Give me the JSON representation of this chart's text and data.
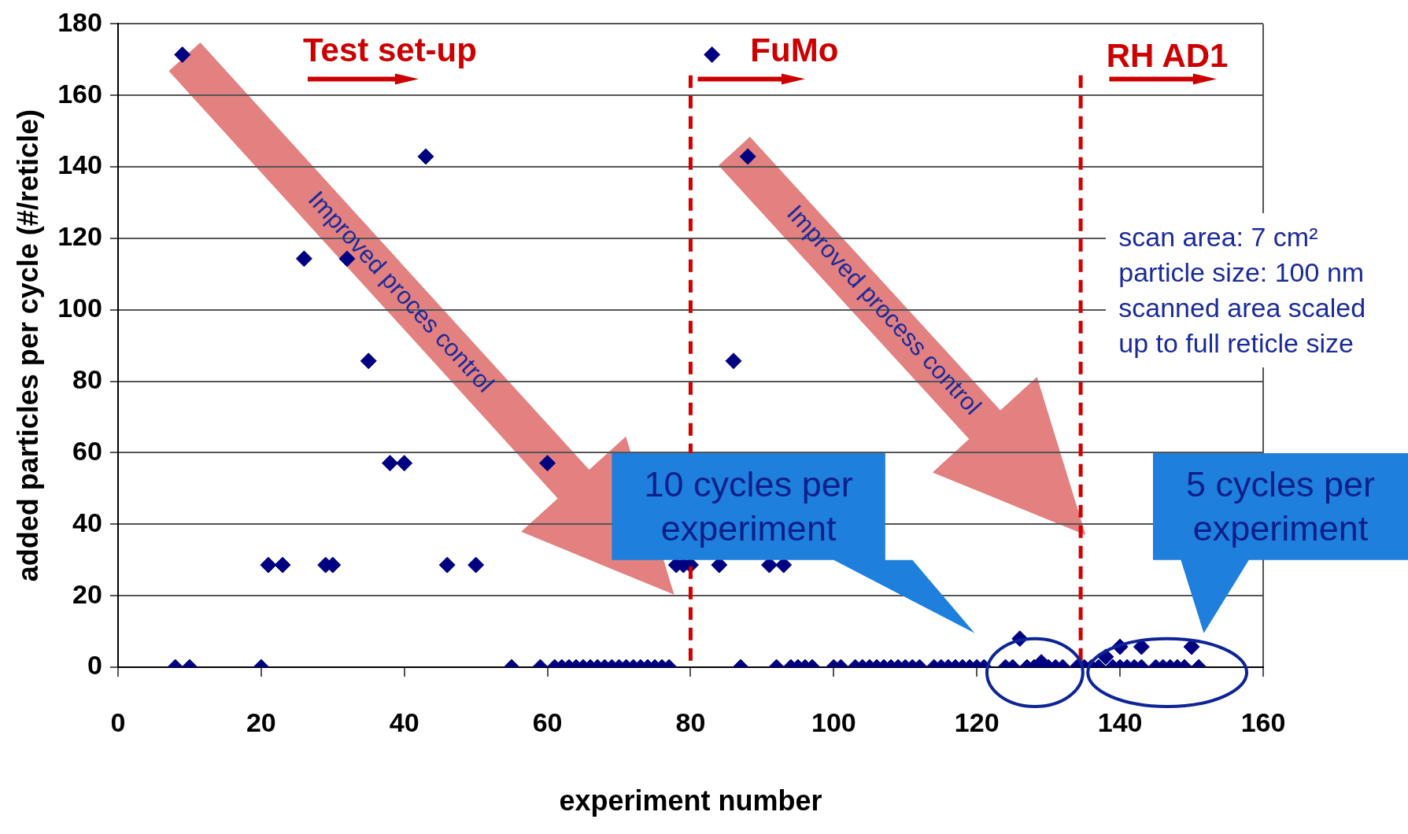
{
  "chart_data": {
    "type": "scatter",
    "xlabel": "experiment number",
    "ylabel": "added particles per cycle (#/reticle)",
    "x": [
      8,
      9,
      10,
      20,
      21,
      23,
      26,
      29,
      30,
      32,
      35,
      38,
      40,
      43,
      46,
      50,
      55,
      59,
      60,
      61,
      62,
      63,
      64,
      65,
      66,
      67,
      68,
      69,
      70,
      71,
      72,
      73,
      74,
      75,
      76,
      77,
      78,
      79,
      80,
      83,
      84,
      86,
      87,
      88,
      91,
      92,
      93,
      94,
      95,
      96,
      97,
      100,
      101,
      103,
      104,
      105,
      106,
      107,
      108,
      109,
      110,
      111,
      112,
      114,
      115,
      116,
      117,
      118,
      119,
      120,
      121,
      124,
      125,
      126,
      127,
      128,
      129,
      130,
      131,
      132,
      134,
      135,
      136,
      137,
      138,
      139,
      140,
      140,
      141,
      142,
      143,
      143,
      145,
      146,
      147,
      148,
      149,
      150,
      151
    ],
    "series": [
      {
        "color": "#000080",
        "values": [
          0,
          171.4,
          0,
          0,
          28.6,
          28.6,
          114.3,
          28.6,
          28.6,
          114.3,
          85.7,
          57.1,
          57.1,
          142.9,
          28.6,
          28.6,
          0,
          0,
          57.1,
          0,
          0,
          0,
          0,
          0,
          0,
          0,
          0,
          0,
          0,
          0,
          0,
          0,
          0,
          0,
          0,
          0,
          28.6,
          28.6,
          28.6,
          171.4,
          28.6,
          85.7,
          0,
          142.9,
          28.6,
          0,
          28.6,
          0,
          0,
          0,
          0,
          0,
          0,
          0,
          0,
          0,
          0,
          0,
          0,
          0,
          0,
          0,
          0,
          0,
          0,
          0,
          0,
          0,
          0,
          0,
          0,
          0,
          0,
          8,
          0,
          0,
          1.4,
          0,
          0,
          0,
          0,
          0,
          0,
          0,
          2.9,
          0,
          5.7,
          0,
          0,
          0,
          5.7,
          0,
          0,
          0,
          0,
          0,
          0,
          5.7,
          0
        ]
      }
    ],
    "xlim": [
      0,
      160
    ],
    "xticks": [
      0,
      20,
      40,
      60,
      80,
      100,
      120,
      140,
      160
    ],
    "ylim": [
      0,
      180
    ],
    "yticks": [
      0,
      20,
      40,
      60,
      80,
      100,
      120,
      140,
      160,
      180
    ],
    "grid": "y",
    "legend": false,
    "marker": "diamond",
    "ref_lines": [
      {
        "axis": "x",
        "value": 80,
        "color": "#d40000",
        "line_style": "dashed"
      },
      {
        "axis": "x",
        "value": 134.5,
        "color": "#d40000",
        "line_style": "dashed"
      }
    ],
    "annotations": [
      "Test set-up",
      "FuMo",
      "RH AD1",
      "Improved proces control",
      "Improved process control",
      "10 cycles per experiment",
      "5 cycles per experiment",
      "scan area: 7 cm²\nparticle size: 100 nm\nscanned area scaled\nup to full reticle size"
    ]
  }
}
